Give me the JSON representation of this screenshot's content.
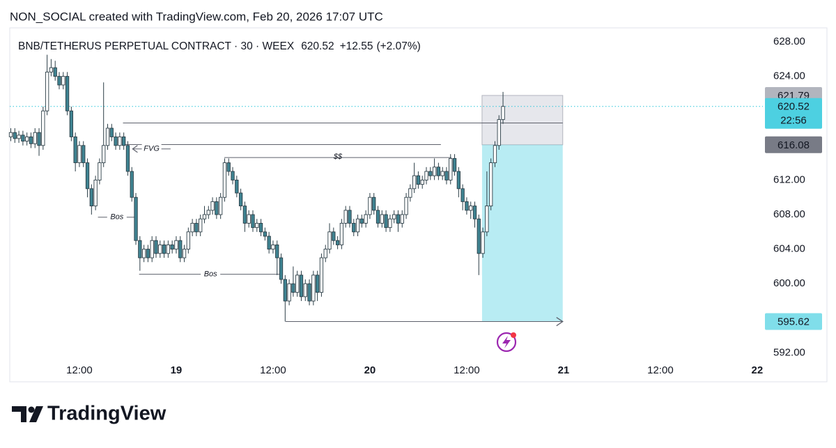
{
  "header": {
    "credit": "NON_SOCIAL created with TradingView.com, Feb 20, 2026 17:07 UTC"
  },
  "footer": {
    "brand": "TradingView"
  },
  "chart_data": {
    "type": "candlestick",
    "title": "BNB/TETHERUS PERPETUAL CONTRACT · 30 · WEEX",
    "last_price": 620.52,
    "change": "+12.55",
    "change_pct": "(+2.07%)",
    "countdown": "22:56",
    "up_color": "#ffffff",
    "down_color": "#3f8391",
    "outline_color": "#2c3e47",
    "xlim": [
      3.37,
      96.7
    ],
    "xticks": [
      {
        "value": 12,
        "label": "12:00"
      },
      {
        "value": 24,
        "label": "19"
      },
      {
        "value": 36,
        "label": "12:00"
      },
      {
        "value": 48,
        "label": "20"
      },
      {
        "value": 60,
        "label": "12:00"
      },
      {
        "value": 72,
        "label": "21"
      },
      {
        "value": 84,
        "label": "12:00"
      },
      {
        "value": 96,
        "label": "22"
      }
    ],
    "ylim": [
      588.65,
      629.61
    ],
    "yticks": [
      {
        "value": 592,
        "label": "592.00"
      },
      {
        "value": 600,
        "label": "600.00"
      },
      {
        "value": 604,
        "label": "604.00"
      },
      {
        "value": 608,
        "label": "608.00"
      },
      {
        "value": 612,
        "label": "612.00"
      },
      {
        "value": 624,
        "label": "624.00"
      },
      {
        "value": 628,
        "label": "628.00"
      }
    ],
    "x": [
      3.5,
      4,
      4.5,
      5,
      5.5,
      6,
      6.5,
      7,
      7.5,
      8,
      8.5,
      9,
      9.5,
      10,
      10.5,
      11,
      11.5,
      12,
      12.5,
      13,
      13.5,
      14,
      14.5,
      15,
      15.5,
      16,
      16.5,
      17,
      17.5,
      18,
      18.5,
      19,
      19.5,
      20,
      20.5,
      21,
      21.5,
      22,
      22.5,
      23,
      23.5,
      24,
      24.5,
      25,
      25.5,
      26,
      26.5,
      27,
      27.5,
      28,
      28.5,
      29,
      29.5,
      30,
      30.5,
      31,
      31.5,
      32,
      32.5,
      33,
      33.5,
      34,
      34.5,
      35,
      35.5,
      36,
      36.5,
      37,
      37.5,
      38,
      38.5,
      39,
      39.5,
      40,
      40.5,
      41,
      41.5,
      42,
      42.5,
      43,
      43.5,
      44,
      44.5,
      45,
      45.5,
      46,
      46.5,
      47,
      47.5,
      48,
      48.5,
      49,
      49.5,
      50,
      50.5,
      51,
      51.5,
      52,
      52.5,
      53,
      53.5,
      54,
      54.5,
      55,
      55.5,
      56,
      56.5,
      57,
      57.5,
      58,
      58.5,
      59,
      59.5,
      60,
      60.5,
      61,
      61.5,
      62,
      62.5,
      63,
      63.5,
      64,
      64.5
    ],
    "open": [
      617,
      617.5,
      616.8,
      617.2,
      616.5,
      617,
      616.2,
      617.5,
      616,
      620,
      624.5,
      625,
      624,
      623,
      624,
      620,
      617,
      614,
      616,
      614,
      611,
      609,
      612,
      614,
      616,
      618,
      617,
      616,
      617,
      616,
      613,
      610,
      605,
      603,
      604,
      603,
      605,
      603.5,
      604.5,
      603.5,
      604.5,
      604,
      605,
      603,
      604,
      606,
      607,
      606,
      607.5,
      608,
      608.5,
      609.5,
      608,
      610,
      614,
      613,
      612,
      610.5,
      609,
      607,
      608,
      606.5,
      607,
      606,
      605.5,
      604,
      604.5,
      603,
      600.5,
      598,
      600,
      599,
      601,
      598.5,
      600,
      598,
      601,
      599,
      603,
      604,
      606,
      605,
      604.5,
      607,
      608.5,
      607,
      606,
      607.5,
      607,
      608,
      610,
      608.5,
      607,
      608,
      606.5,
      607.5,
      608,
      607,
      608,
      610,
      611,
      612.5,
      611.5,
      612,
      613,
      612.5,
      613.5,
      612.5,
      613,
      612,
      614.5,
      613,
      611,
      609.5,
      608.5,
      609,
      607.5,
      603.5,
      606,
      609,
      614,
      616,
      619
    ],
    "high": [
      618,
      618,
      617.7,
      617.7,
      617.5,
      617.5,
      618,
      618,
      620.5,
      626.5,
      626,
      625.8,
      624.5,
      624.5,
      624.5,
      620.5,
      617.5,
      616.5,
      616.5,
      614.5,
      611.5,
      612.5,
      614.5,
      623.3,
      618.5,
      618.5,
      617.5,
      617.5,
      617.5,
      616.5,
      613.5,
      610.5,
      605.5,
      604.5,
      604.5,
      605.5,
      605.5,
      605,
      605,
      605,
      605,
      605.5,
      605.5,
      604.5,
      606.5,
      607.5,
      607.5,
      608,
      609,
      609,
      610,
      610,
      610.5,
      614.5,
      614.5,
      613.5,
      612.5,
      611,
      609.5,
      608.5,
      608.5,
      607.5,
      607.5,
      606.5,
      606,
      605,
      605,
      603.5,
      601,
      600.5,
      602,
      601.5,
      601.5,
      600.5,
      600.5,
      601.5,
      601.5,
      603.5,
      604.5,
      607,
      606.5,
      605.5,
      607.5,
      609,
      609,
      607.5,
      608,
      608,
      608.5,
      610.5,
      610.5,
      609,
      608.5,
      608.5,
      608,
      608.5,
      608.5,
      608.5,
      610.5,
      611.5,
      614,
      613,
      612.5,
      613.5,
      613.5,
      614.5,
      614,
      613.5,
      613.5,
      615,
      615,
      613.5,
      611.5,
      610,
      609.5,
      609.5,
      608,
      606.5,
      613,
      614.5,
      616.5,
      619.5,
      622.2
    ],
    "low": [
      616.5,
      616.3,
      616.3,
      616,
      616,
      615.7,
      615.7,
      614.8,
      615.5,
      619.5,
      624,
      623.5,
      622.5,
      622.5,
      619.5,
      616.5,
      613,
      613.5,
      613.5,
      610,
      608,
      608.5,
      611.5,
      613.5,
      615.5,
      616.5,
      615.5,
      615.5,
      615.5,
      612.5,
      609.5,
      604.5,
      601.5,
      602.5,
      602.5,
      602.5,
      603,
      603,
      603,
      603,
      603.5,
      603.5,
      602.5,
      602.5,
      603.5,
      605.5,
      605.5,
      605.5,
      607,
      607.5,
      608,
      607.5,
      607.5,
      609.5,
      612.5,
      611.5,
      610,
      608.5,
      606,
      606.5,
      606,
      606,
      605.5,
      605,
      603.5,
      603.5,
      601,
      600,
      595.62,
      597.5,
      598.5,
      598.5,
      598,
      598,
      597.5,
      597.5,
      598,
      598.5,
      602.5,
      603.5,
      604.5,
      604,
      604,
      606.5,
      606.5,
      605.5,
      605.5,
      606.5,
      606.5,
      607.5,
      608,
      606.5,
      606.5,
      606,
      606,
      607,
      606,
      606.5,
      607.5,
      609.5,
      610.5,
      611,
      611,
      611.5,
      612,
      612,
      612,
      612,
      611.5,
      611.5,
      612.5,
      610,
      608.5,
      608,
      607.5,
      606.5,
      601,
      603,
      605.5,
      608.5,
      613.5,
      615.5,
      618.5
    ],
    "close": [
      617.5,
      616.8,
      617.2,
      616.5,
      617,
      616.2,
      617.5,
      616,
      620,
      624.5,
      625,
      624,
      623,
      624,
      620,
      617,
      614,
      616,
      614,
      611,
      609,
      612,
      614,
      616,
      618,
      617,
      616,
      617,
      616,
      613,
      610,
      605,
      603,
      604,
      603,
      605,
      603.5,
      604.5,
      603.5,
      604.5,
      604,
      605,
      603,
      604,
      606,
      607,
      606,
      607.5,
      608,
      608.5,
      609.5,
      608,
      610,
      614,
      613,
      612,
      610.5,
      609,
      607,
      608,
      606.5,
      607,
      606,
      605.5,
      604,
      604.5,
      603,
      600.5,
      598,
      600,
      599,
      601,
      598.5,
      600,
      598,
      601,
      599,
      603,
      604,
      606,
      605,
      604.5,
      607,
      608.5,
      607,
      606,
      607.5,
      607,
      608,
      610,
      608.5,
      607,
      608,
      606.5,
      607.5,
      608,
      607,
      608,
      610,
      611,
      612.5,
      611.5,
      612,
      613,
      612.5,
      613.5,
      612.5,
      613,
      612,
      614.5,
      613,
      611,
      609.5,
      608.5,
      609,
      607.5,
      603.5,
      606,
      609,
      614,
      616,
      619,
      620.52
    ],
    "position": {
      "stop": 621.79,
      "entry": 616.08,
      "target": 595.62,
      "x": [
        61.9,
        71.9
      ]
    },
    "lines": [
      {
        "price": 618.6,
        "x": [
          17.4,
          71.9
        ]
      },
      {
        "price": 616.1,
        "x": [
          17.6,
          56.8
        ]
      },
      {
        "price": 595.62,
        "x": [
          37.56,
          71.9
        ]
      }
    ],
    "annotations": [
      {
        "text": "FVG",
        "price": 615.6,
        "x": [
          18.6,
          23.3
        ]
      },
      {
        "text": "$$",
        "price": 614.6,
        "x": [
          29.96,
          58.1
        ]
      },
      {
        "text": "Bos",
        "price": 607.7,
        "x": [
          14.3,
          19.0
        ]
      },
      {
        "text": "Bos",
        "price": 601.1,
        "x": [
          19.4,
          37.1
        ]
      }
    ]
  }
}
